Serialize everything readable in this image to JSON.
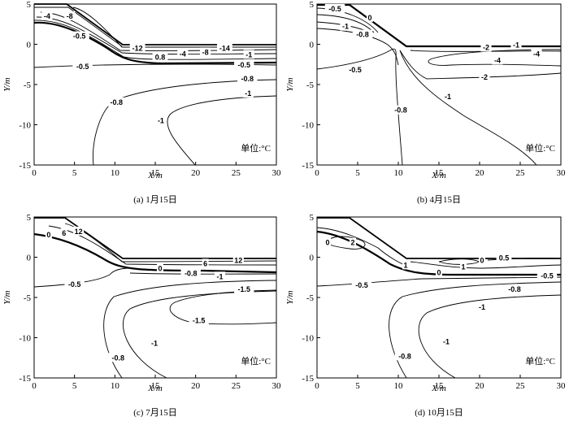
{
  "chart_data": [
    {
      "type": "contour",
      "caption": "(a) 1月15日",
      "unit_note": "单位:°C",
      "xlabel": "X/m",
      "ylabel": "Y/m",
      "xlim": [
        0,
        30
      ],
      "ylim": [
        -15,
        5
      ],
      "xticks": [
        "0",
        "5",
        "10",
        "15",
        "20",
        "25",
        "30"
      ],
      "yticks": [
        "5",
        "0",
        "-5",
        "-10",
        "-15"
      ],
      "contour_labels": [
        {
          "text": "-4",
          "x": 1.6,
          "y": 3.5
        },
        {
          "text": "-8",
          "x": 4.4,
          "y": 3.5
        },
        {
          "text": "-0.5",
          "x": 5.6,
          "y": 1.0
        },
        {
          "text": "-12",
          "x": 12.8,
          "y": -0.5
        },
        {
          "text": "-14",
          "x": 23.6,
          "y": -0.5
        },
        {
          "text": "0.8",
          "x": 15.6,
          "y": -1.6
        },
        {
          "text": "-4",
          "x": 18.4,
          "y": -1.2
        },
        {
          "text": "-8",
          "x": 21.2,
          "y": -1.0
        },
        {
          "text": "-1",
          "x": 26.6,
          "y": -1.3
        },
        {
          "text": "-0.5",
          "x": 6.0,
          "y": -2.8
        },
        {
          "text": "-0.5",
          "x": 26.0,
          "y": -2.6
        },
        {
          "text": "-0.8",
          "x": 26.4,
          "y": -4.3
        },
        {
          "text": "-1",
          "x": 26.5,
          "y": -6.1
        },
        {
          "text": "-0.8",
          "x": 10.2,
          "y": -7.2
        },
        {
          "text": "-1",
          "x": 15.7,
          "y": -9.5
        }
      ]
    },
    {
      "type": "contour",
      "caption": "(b) 4月15日",
      "unit_note": "单位:°C",
      "xlabel": "X/m",
      "ylabel": "Y/m",
      "xlim": [
        0,
        30
      ],
      "ylim": [
        -15,
        5
      ],
      "xticks": [
        "0",
        "5",
        "10",
        "15",
        "20",
        "25",
        "30"
      ],
      "yticks": [
        "5",
        "0",
        "-5",
        "-10",
        "-15"
      ],
      "contour_labels": [
        {
          "text": "-0.5",
          "x": 2.2,
          "y": 4.4
        },
        {
          "text": "0",
          "x": 6.5,
          "y": 3.3
        },
        {
          "text": "-1",
          "x": 3.5,
          "y": 2.2
        },
        {
          "text": "-0.8",
          "x": 5.6,
          "y": 1.2
        },
        {
          "text": "-2",
          "x": 20.8,
          "y": -0.4
        },
        {
          "text": "-1",
          "x": 24.5,
          "y": -0.1
        },
        {
          "text": "-4",
          "x": 27.0,
          "y": -1.2
        },
        {
          "text": "-4",
          "x": 22.2,
          "y": -2.0
        },
        {
          "text": "-0.5",
          "x": 4.7,
          "y": -3.2
        },
        {
          "text": "-2",
          "x": 20.6,
          "y": -4.1
        },
        {
          "text": "-1",
          "x": 16.1,
          "y": -6.5
        },
        {
          "text": "-0.8",
          "x": 10.3,
          "y": -8.2
        }
      ]
    },
    {
      "type": "contour",
      "caption": "(c) 7月15日",
      "unit_note": "单位:°C",
      "xlabel": "X/m",
      "ylabel": "Y/m",
      "xlim": [
        0,
        30
      ],
      "ylim": [
        -15,
        5
      ],
      "xticks": [
        "0",
        "5",
        "10",
        "15",
        "20",
        "25",
        "30"
      ],
      "yticks": [
        "5",
        "0",
        "-5",
        "-10",
        "-15"
      ],
      "contour_labels": [
        {
          "text": "0",
          "x": 1.8,
          "y": 2.8
        },
        {
          "text": "6",
          "x": 3.7,
          "y": 3.0
        },
        {
          "text": "12",
          "x": 5.5,
          "y": 3.2
        },
        {
          "text": "6",
          "x": 21.2,
          "y": -0.8
        },
        {
          "text": "12",
          "x": 25.3,
          "y": -0.4
        },
        {
          "text": "0",
          "x": 15.6,
          "y": -1.4
        },
        {
          "text": "-0.8",
          "x": 19.4,
          "y": -2.0
        },
        {
          "text": "-1",
          "x": 23.0,
          "y": -2.4
        },
        {
          "text": "-0.5",
          "x": 5.0,
          "y": -3.4
        },
        {
          "text": "-1.5",
          "x": 26.0,
          "y": -4.0
        },
        {
          "text": "-1.5",
          "x": 20.4,
          "y": -7.9
        },
        {
          "text": "-1",
          "x": 14.9,
          "y": -10.7
        },
        {
          "text": "-0.8",
          "x": 10.4,
          "y": -12.5
        }
      ]
    },
    {
      "type": "contour",
      "caption": "(d) 10月15日",
      "unit_note": "单位:°C",
      "xlabel": "X/m",
      "ylabel": "Y/m",
      "xlim": [
        0,
        30
      ],
      "ylim": [
        -15,
        5
      ],
      "xticks": [
        "0",
        "5",
        "10",
        "15",
        "20",
        "25",
        "30"
      ],
      "yticks": [
        "5",
        "0",
        "-5",
        "-10",
        "-15"
      ],
      "contour_labels": [
        {
          "text": "0",
          "x": 1.3,
          "y": 1.8
        },
        {
          "text": "2",
          "x": 4.4,
          "y": 1.8
        },
        {
          "text": "1",
          "x": 10.9,
          "y": -1.0
        },
        {
          "text": "1",
          "x": 18.0,
          "y": -1.2
        },
        {
          "text": "0",
          "x": 20.3,
          "y": -0.4
        },
        {
          "text": "0.5",
          "x": 23.0,
          "y": -0.1
        },
        {
          "text": "0",
          "x": 15.0,
          "y": -1.9
        },
        {
          "text": "-0.5",
          "x": 28.3,
          "y": -2.3
        },
        {
          "text": "-0.5",
          "x": 5.5,
          "y": -3.5
        },
        {
          "text": "-0.8",
          "x": 24.3,
          "y": -4.0
        },
        {
          "text": "-1",
          "x": 20.3,
          "y": -6.2
        },
        {
          "text": "-1",
          "x": 15.9,
          "y": -10.5
        },
        {
          "text": "-0.8",
          "x": 10.8,
          "y": -12.3
        }
      ]
    }
  ]
}
